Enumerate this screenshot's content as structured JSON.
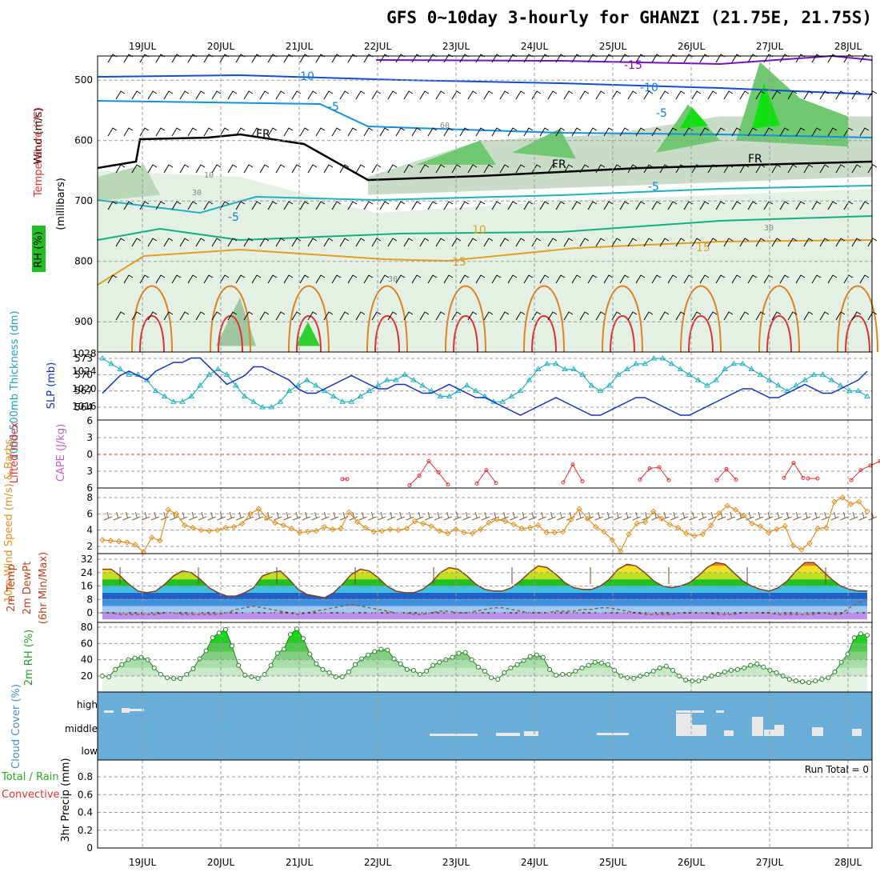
{
  "title": "GFS 0~10day 3-hourly for GHANZI (21.75E, 21.75S)",
  "dates": [
    "19JUL",
    "20JUL",
    "21JUL",
    "22JUL",
    "23JUL",
    "24JUL",
    "25JUL",
    "26JUL",
    "27JUL",
    "28JUL"
  ],
  "chart_data": [
    {
      "type": "heatmap",
      "panel": "upper-air",
      "ylabel_parts": [
        "Wind (m/s)",
        "Temperature (°C)",
        "RH (%)"
      ],
      "ylabel_units": "(millibars)",
      "yticks": [
        500,
        600,
        700,
        800,
        900
      ],
      "ylim": [
        460,
        950
      ],
      "temperature_contour_labels": [
        "-15",
        "-10",
        "-10",
        "-5",
        "-5",
        "FR",
        "FR",
        "FR",
        "-5",
        "-5",
        "10",
        "15",
        "15"
      ],
      "rh_contour_labels": [
        "10",
        "30",
        "30",
        "30",
        "60"
      ],
      "colors": {
        "wind_barb": "#000000",
        "t_warm": "#e07020",
        "t_cold": "#1040d0",
        "rh": "#00c000"
      }
    },
    {
      "type": "line",
      "panel": "thickness-slp",
      "ylabel_left": "1000-500mb Thickness (dm)",
      "ylabel_right": "SLP (mb)",
      "yticks_left": [
        564,
        567,
        570,
        573
      ],
      "yticks_right": [
        1016,
        1020,
        1024,
        1028
      ],
      "series": [
        {
          "name": "Thickness",
          "color": "#20b0c0",
          "values": [
            573,
            572,
            571,
            570,
            570,
            569,
            567,
            566,
            565,
            565,
            566,
            568,
            570,
            571,
            570,
            568,
            566,
            565,
            564,
            564,
            565,
            567,
            568,
            569,
            568,
            567,
            566,
            565,
            565,
            566,
            567,
            568,
            569,
            569,
            570,
            569,
            568,
            567,
            566,
            566,
            567,
            568,
            567,
            566,
            565,
            565,
            566,
            567,
            569,
            571,
            572,
            572,
            571,
            571,
            570,
            568,
            567,
            568,
            570,
            571,
            572,
            572,
            573,
            573,
            572,
            571,
            570,
            569,
            568,
            569,
            571,
            572,
            572,
            571,
            570,
            569,
            568,
            567,
            568,
            569,
            570,
            570,
            569,
            568,
            567,
            567,
            566
          ]
        },
        {
          "name": "SLP",
          "color": "#1030c0",
          "values": [
            1019,
            1021,
            1023,
            1024,
            1023,
            1022,
            1024,
            1025,
            1026,
            1026,
            1027,
            1027,
            1025,
            1023,
            1021,
            1022,
            1023,
            1025,
            1025,
            1024,
            1023,
            1022,
            1020,
            1019,
            1019,
            1020,
            1021,
            1022,
            1023,
            1022,
            1021,
            1020,
            1020,
            1021,
            1021,
            1020,
            1019,
            1019,
            1020,
            1021,
            1020,
            1019,
            1018,
            1018,
            1017,
            1016,
            1015,
            1014,
            1015,
            1016,
            1017,
            1018,
            1017,
            1016,
            1015,
            1014,
            1014,
            1015,
            1016,
            1017,
            1018,
            1018,
            1017,
            1016,
            1015,
            1014,
            1014,
            1015,
            1016,
            1017,
            1018,
            1019,
            1020,
            1020,
            1019,
            1018,
            1018,
            1019,
            1020,
            1021,
            1020,
            1019,
            1019,
            1020,
            1021,
            1022,
            1024
          ]
        }
      ]
    },
    {
      "type": "line",
      "panel": "stability",
      "ylabel_left": "Lifted Index",
      "ylabel_right": "CAPE (J/kg)",
      "yticks": [
        -6,
        -3,
        0,
        3,
        6
      ],
      "segments": [
        {
          "x": [
            25.0,
            25.5
          ],
          "values": [
            4.4,
            4.4
          ]
        },
        {
          "x": [
            32.0,
            33.0,
            34.0,
            35.0,
            36.0
          ],
          "values": [
            5.5,
            3.8,
            1.2,
            3.2,
            5.4
          ]
        },
        {
          "x": [
            39.0,
            40.0,
            41.0
          ],
          "values": [
            5.2,
            2.8,
            5.1
          ]
        },
        {
          "x": [
            48.0,
            49.0,
            50.0
          ],
          "values": [
            5.0,
            1.8,
            4.8
          ]
        },
        {
          "x": [
            56.0,
            57.0,
            58.0,
            59.0
          ],
          "values": [
            4.5,
            2.5,
            2.3,
            4.6
          ]
        },
        {
          "x": [
            64.0,
            65.0,
            66.0
          ],
          "values": [
            4.6,
            2.6,
            4.5
          ]
        },
        {
          "x": [
            71.0,
            72.0,
            73.0
          ],
          "values": [
            4.2,
            1.5,
            4.2
          ]
        },
        {
          "x": [
            73.5,
            74.5
          ],
          "values": [
            4.3,
            4.3
          ]
        },
        {
          "x": [
            78.0,
            79.0,
            80.0,
            81.0,
            82.0
          ],
          "values": [
            4.6,
            2.8,
            2.0,
            1.2,
            4.6
          ]
        }
      ]
    },
    {
      "type": "line",
      "panel": "wind10m",
      "ylabel": "10m Wind Speed (m/s) & Barbs",
      "yticks": [
        2,
        4,
        6,
        8
      ],
      "series": [
        {
          "name": "Speed",
          "color": "#e09020",
          "values": [
            2.8,
            2.7,
            2.6,
            2.5,
            2.2,
            1.3,
            3.1,
            2.7,
            6.5,
            6.0,
            4.6,
            4.3,
            4.0,
            3.9,
            4.0,
            4.3,
            4.4,
            4.8,
            6.0,
            6.6,
            5.5,
            4.9,
            4.6,
            4.2,
            3.7,
            3.8,
            3.9,
            4.4,
            4.1,
            4.2,
            6.2,
            5.0,
            4.3,
            3.8,
            3.9,
            4.1,
            4.0,
            4.2,
            5.1,
            4.8,
            4.5,
            3.9,
            3.6,
            4.1,
            3.7,
            3.6,
            4.1,
            4.9,
            5.3,
            5.1,
            4.7,
            4.2,
            4.3,
            4.6,
            3.7,
            3.7,
            3.8,
            5.3,
            6.6,
            5.4,
            4.4,
            3.8,
            2.8,
            1.4,
            3.5,
            4.8,
            5.0,
            6.3,
            5.4,
            4.7,
            4.3,
            3.6,
            3.3,
            3.5,
            4.6,
            6.1,
            7.0,
            6.5,
            5.8,
            4.8,
            4.5,
            3.7,
            4.1,
            4.5,
            2.1,
            1.6,
            2.4,
            4.2,
            4.3,
            7.5,
            8.0,
            7.2,
            7.5,
            6.3
          ]
        }
      ]
    },
    {
      "type": "area",
      "panel": "temperature",
      "ylabel_parts": [
        "2m Temp",
        "2m DewPt",
        "(6hr Min/Max)"
      ],
      "yticks": [
        0,
        8,
        16,
        24,
        32
      ],
      "series": [
        {
          "name": "2m Temp",
          "values": [
            26,
            26,
            22,
            17,
            13,
            12,
            13,
            17,
            22,
            25,
            24,
            20,
            15,
            12,
            10,
            10,
            12,
            15,
            22,
            24,
            25,
            20,
            14,
            11,
            10,
            9,
            12,
            17,
            23,
            26,
            25,
            21,
            16,
            13,
            12,
            12,
            14,
            18,
            24,
            27,
            26,
            22,
            17,
            14,
            13,
            13,
            15,
            19,
            24,
            28,
            27,
            23,
            18,
            15,
            14,
            14,
            16,
            20,
            26,
            29,
            28,
            24,
            19,
            16,
            15,
            16,
            18,
            22,
            27,
            30,
            29,
            24,
            19,
            16,
            14,
            13,
            15,
            19,
            25,
            30,
            30,
            25,
            20,
            16,
            14,
            13,
            13
          ]
        },
        {
          "name": "2m DewPt",
          "values": [
            0,
            0,
            -1,
            -1,
            -1,
            -1,
            -1,
            0,
            0,
            -1,
            -1,
            -1,
            -1,
            -1,
            0,
            2,
            3,
            4,
            3,
            2,
            1,
            0,
            -1,
            0,
            1,
            2,
            3,
            4,
            5,
            4,
            3,
            2,
            1,
            0,
            0,
            -1,
            -1,
            0,
            1,
            1,
            0,
            0,
            1,
            2,
            3,
            3,
            2,
            1,
            0,
            0,
            0,
            1,
            1,
            1,
            2,
            2,
            3,
            3,
            2,
            1,
            0,
            -1,
            -1,
            -1,
            -1,
            0,
            0,
            0,
            0,
            -1,
            -1,
            -1,
            0,
            0,
            0,
            0,
            -1,
            -1,
            -1,
            -1,
            -1,
            0,
            -1,
            -1,
            3,
            6,
            8
          ]
        }
      ]
    },
    {
      "type": "area",
      "panel": "rh2m",
      "ylabel": "2m RH (%)",
      "yticks": [
        20,
        40,
        60,
        80
      ],
      "series": [
        {
          "name": "2m RH",
          "values": [
            20,
            19,
            28,
            34,
            40,
            42,
            43,
            40,
            30,
            22,
            18,
            17,
            17,
            22,
            29,
            41,
            51,
            67,
            73,
            77,
            57,
            33,
            21,
            19,
            17,
            22,
            33,
            48,
            53,
            71,
            78,
            66,
            47,
            35,
            28,
            24,
            19,
            19,
            25,
            34,
            41,
            46,
            50,
            53,
            52,
            41,
            35,
            28,
            27,
            22,
            26,
            33,
            37,
            40,
            43,
            48,
            49,
            40,
            31,
            26,
            18,
            16,
            24,
            30,
            34,
            39,
            44,
            46,
            43,
            28,
            21,
            22,
            22,
            26,
            30,
            33,
            37,
            36,
            34,
            27,
            20,
            18,
            17,
            20,
            22,
            26,
            30,
            32,
            27,
            20,
            15,
            14,
            14,
            17,
            20,
            22,
            25,
            27,
            28,
            30,
            33,
            35,
            31,
            27,
            24,
            20,
            16,
            14,
            13,
            12,
            14,
            16,
            18,
            25,
            37,
            47,
            67,
            72,
            70
          ]
        }
      ]
    },
    {
      "type": "bar",
      "panel": "cloud",
      "ylabel": "Cloud Cover (%)",
      "levels": [
        "high",
        "middle",
        "low"
      ]
    },
    {
      "type": "bar",
      "panel": "precip",
      "ylabel_left": "Total / Rain",
      "ylabel_left2": "Convective",
      "ylabel_right": "3hr Precip (mm)",
      "yticks": [
        "0",
        "0.2",
        "0.4",
        "0.6",
        "0.8"
      ],
      "values": [],
      "annotation": "Run Total = 0"
    }
  ]
}
